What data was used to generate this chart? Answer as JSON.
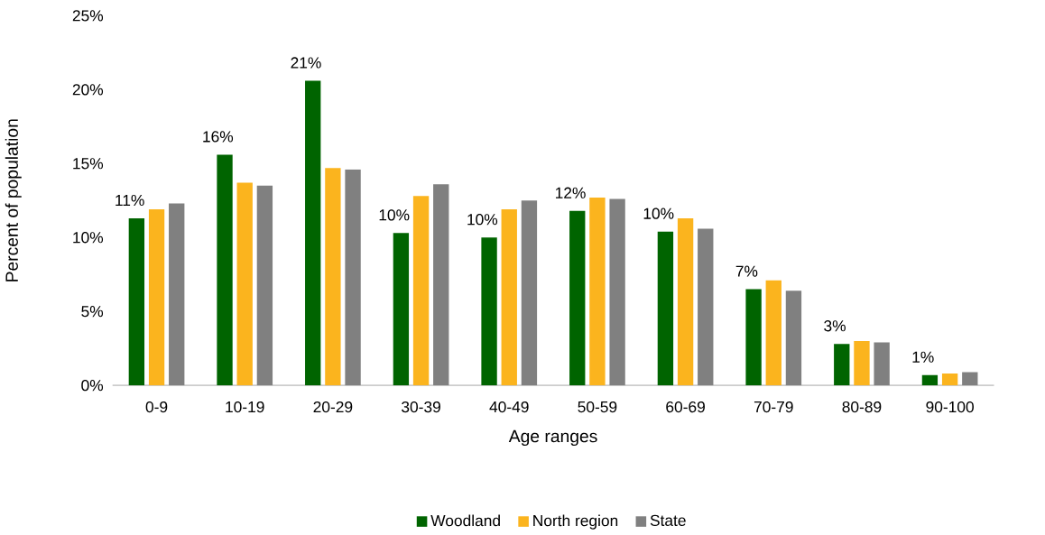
{
  "chart_data": {
    "type": "bar",
    "xlabel": "Age ranges",
    "ylabel": "Percent of population",
    "categories": [
      "0-9",
      "10-19",
      "20-29",
      "30-39",
      "40-49",
      "50-59",
      "60-69",
      "70-79",
      "80-89",
      "90-100"
    ],
    "series": [
      {
        "name": "Woodland",
        "color": "#006400",
        "values": [
          11.3,
          15.6,
          20.6,
          10.3,
          10.0,
          11.8,
          10.4,
          6.5,
          2.8,
          0.7
        ],
        "value_labels": [
          "11%",
          "16%",
          "21%",
          "10%",
          "10%",
          "12%",
          "10%",
          "7%",
          "3%",
          "1%"
        ]
      },
      {
        "name": "North region",
        "color": "#fbb41e",
        "values": [
          11.9,
          13.7,
          14.7,
          12.8,
          11.9,
          12.7,
          11.3,
          7.1,
          3.0,
          0.8
        ]
      },
      {
        "name": "State",
        "color": "#808080",
        "values": [
          12.3,
          13.5,
          14.6,
          13.6,
          12.5,
          12.6,
          10.6,
          6.4,
          2.9,
          0.9
        ]
      }
    ],
    "ylim": [
      0,
      25
    ],
    "yticks": [
      {
        "value": 0,
        "label": "0%"
      },
      {
        "value": 5,
        "label": "5%"
      },
      {
        "value": 10,
        "label": "10%"
      },
      {
        "value": 15,
        "label": "15%"
      },
      {
        "value": 20,
        "label": "20%"
      },
      {
        "value": 25,
        "label": "25%"
      }
    ],
    "legend": "bottom"
  }
}
